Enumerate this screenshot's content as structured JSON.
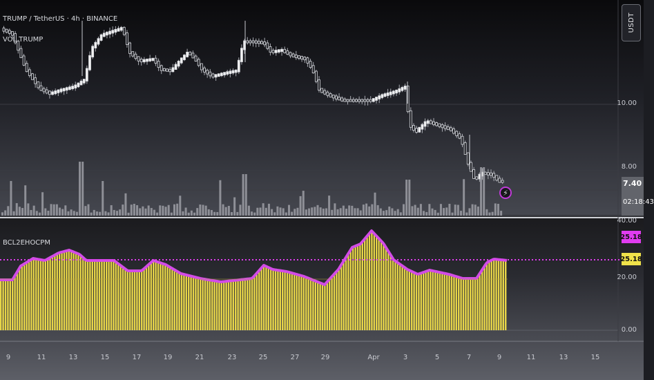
{
  "header": {
    "symbol_line": "TRUMP / TetherUS · 4h · BINANCE",
    "volume_line": "VOL TRUMP",
    "indicator_label": "BCL2EHOCPM"
  },
  "price_axis": {
    "unit_button": "USDT",
    "tick_10": "10.00",
    "tick_8": "8.00",
    "last_price": "7.40",
    "countdown": "02:18:43"
  },
  "indicator_axis": {
    "tick_40": "40.00",
    "value_badge_1": "25.18",
    "value_badge_2": "25.18",
    "tick_20": "20.00",
    "tick_0": "0.00"
  },
  "time_axis": [
    "9",
    "11",
    "13",
    "15",
    "17",
    "19",
    "21",
    "23",
    "25",
    "27",
    "29",
    "Apr",
    "3",
    "5",
    "7",
    "9",
    "11",
    "13",
    "15"
  ],
  "colors": {
    "indicator_line": "#d24ce6",
    "indicator_fill": "#e8d648",
    "badge_magenta": "#e03cf0",
    "badge_yellow": "#f0e24a",
    "candle_up": "#f2f2f2",
    "candle_down": "#9a9ca3"
  },
  "icons": [
    "bolt-icon"
  ]
}
